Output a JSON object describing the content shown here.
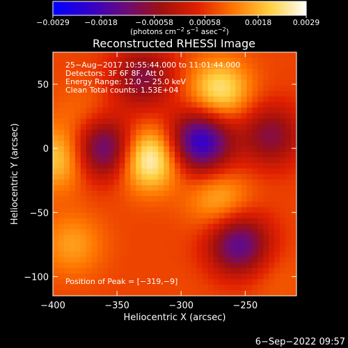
{
  "chart_data": {
    "type": "heatmap",
    "title": "Reconstructed RHESSI Image",
    "xlabel": "Heliocentric X (arcsec)",
    "ylabel": "Heliocentric Y (arcsec)",
    "xlim": [
      -400,
      -210
    ],
    "ylim": [
      -115,
      75
    ],
    "x_ticks": [
      -400,
      -350,
      -300,
      -250
    ],
    "x_tick_labels": [
      "−400",
      "−350",
      "−300",
      "−250"
    ],
    "y_ticks": [
      50,
      0,
      -50,
      -100
    ],
    "y_tick_labels": [
      "50",
      "0",
      "−50",
      "−100"
    ],
    "colorbar": {
      "min": -0.0029,
      "max": 0.0029,
      "ticks": [
        -0.0029,
        -0.0018,
        -0.00058,
        0.00058,
        0.0018,
        0.0029
      ],
      "tick_labels": [
        "−0.0029",
        "−0.0018",
        "−0.00058",
        "0.00058",
        "0.0018",
        "0.0029"
      ],
      "unit_main": "(photons cm",
      "unit_sup1": "−2",
      "unit_mid": " s",
      "unit_sup2": "−1",
      "unit_mid2": " asec",
      "unit_sup3": "−2",
      "unit_end": ")",
      "colors": [
        "#0000ff",
        "#3300cc",
        "#6a0b7a",
        "#a01010",
        "#e02000",
        "#ff7700",
        "#ffd040",
        "#ffffff"
      ]
    },
    "annotations": [
      "25−Aug−2017 10:55:44.000 to 11:01:44.000",
      "Detectors: 3F 6F 8F, Att 0",
      "Energy Range: 12.0 − 25.0 keV",
      "Clean     Total counts: 1.53E+04"
    ],
    "peak_label": "Position of Peak = [−319,−9]",
    "sources": [
      {
        "x": -325,
        "y": -8,
        "value": 0.0029
      },
      {
        "x": -270,
        "y": 45,
        "value": 0.0024
      },
      {
        "x": -395,
        "y": -8,
        "value": 0.0021
      },
      {
        "x": -270,
        "y": -40,
        "value": 0.0018
      },
      {
        "x": -375,
        "y": 25,
        "value": 0.0012
      },
      {
        "x": -385,
        "y": -75,
        "value": 0.0016
      },
      {
        "x": -228,
        "y": -100,
        "value": 0.001
      },
      {
        "x": -290,
        "y": -110,
        "value": 0.0008
      },
      {
        "x": -360,
        "y": 0,
        "value": -0.0016
      },
      {
        "x": -285,
        "y": 5,
        "value": -0.0022
      },
      {
        "x": -255,
        "y": -75,
        "value": -0.0015
      },
      {
        "x": -330,
        "y": 55,
        "value": -0.0008
      },
      {
        "x": -230,
        "y": 10,
        "value": -0.0008
      }
    ]
  },
  "timestamp": "6−Sep−2022 09:57"
}
